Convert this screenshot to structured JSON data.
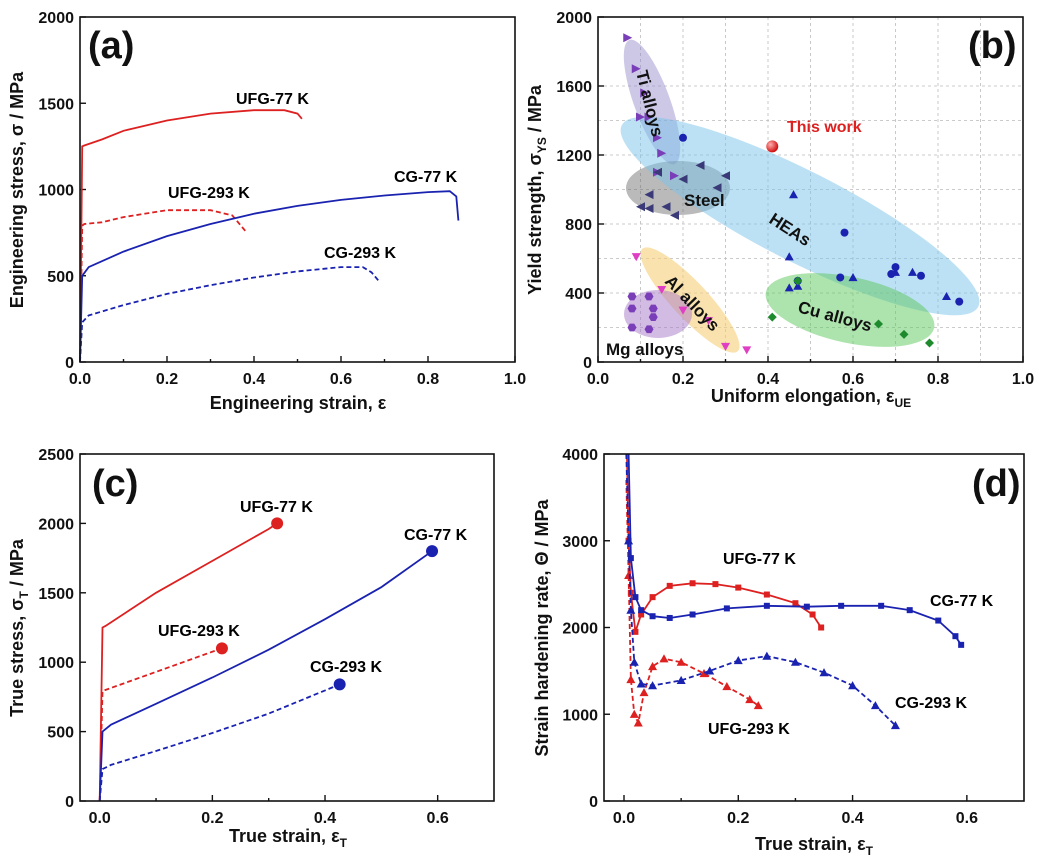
{
  "colors": {
    "red": "#dd2020",
    "blue": "#1a22b0",
    "purple": "#7a3fb8",
    "green": "#1e8a2e",
    "magenta": "#e03fc4",
    "steel": "#3a3a78"
  },
  "chart_data": [
    {
      "type": "line",
      "panel": "(a)",
      "xlabel": "Engineering strain, ε",
      "ylabel": "Engineering stress, σ / MPa",
      "xlim": [
        0,
        1.0
      ],
      "ylim": [
        0,
        2000
      ],
      "xticks": [
        "0.0",
        "0.2",
        "0.4",
        "0.6",
        "0.8",
        "1.0"
      ],
      "yticks": [
        "0",
        "500",
        "1000",
        "1500",
        "2000"
      ],
      "series": [
        {
          "name": "UFG-77 K",
          "color": "red",
          "dashed": false,
          "x": [
            0,
            0.005,
            0.01,
            0.05,
            0.1,
            0.2,
            0.3,
            0.4,
            0.47,
            0.5,
            0.51
          ],
          "y": [
            0,
            1250,
            1255,
            1290,
            1340,
            1400,
            1440,
            1460,
            1460,
            1440,
            1410
          ]
        },
        {
          "name": "UFG-293 K",
          "color": "red",
          "dashed": true,
          "x": [
            0,
            0.005,
            0.01,
            0.05,
            0.1,
            0.2,
            0.3,
            0.35,
            0.38
          ],
          "y": [
            0,
            790,
            800,
            810,
            840,
            880,
            880,
            850,
            760
          ]
        },
        {
          "name": "CG-77 K",
          "color": "blue",
          "dashed": false,
          "x": [
            0,
            0.005,
            0.02,
            0.1,
            0.2,
            0.3,
            0.4,
            0.5,
            0.6,
            0.7,
            0.8,
            0.85,
            0.865,
            0.87
          ],
          "y": [
            0,
            500,
            550,
            640,
            730,
            800,
            860,
            905,
            940,
            965,
            985,
            990,
            960,
            820
          ]
        },
        {
          "name": "CG-293 K",
          "color": "blue",
          "dashed": true,
          "x": [
            0,
            0.005,
            0.02,
            0.1,
            0.2,
            0.3,
            0.4,
            0.5,
            0.6,
            0.65,
            0.67,
            0.69
          ],
          "y": [
            0,
            230,
            270,
            330,
            395,
            445,
            490,
            525,
            550,
            550,
            520,
            460
          ]
        }
      ],
      "annotations": [
        "UFG-77 K",
        "UFG-293 K",
        "CG-77 K",
        "CG-293 K"
      ]
    },
    {
      "type": "scatter",
      "panel": "(b)",
      "xlabel": "Uniform elongation, ε",
      "xlabel_sub": "UE",
      "ylabel": "Yield strength, σ",
      "ylabel_sub": "YS",
      "ylabel_unit": " / MPa",
      "xlim": [
        0,
        1.0
      ],
      "ylim": [
        0,
        2000
      ],
      "xticks": [
        "0.0",
        "0.2",
        "0.4",
        "0.6",
        "0.8",
        "1.0"
      ],
      "yticks": [
        "0",
        "400",
        "800",
        "1200",
        "1600",
        "2000"
      ],
      "regions": [
        "Ti alloys",
        "Steel",
        "HEAs",
        "Al alloys",
        "Cu alloys",
        "Mg alloys"
      ],
      "this_work_label": "This work",
      "series": [
        {
          "name": "Ti alloys",
          "marker": "tri-right",
          "color": "purple",
          "points": [
            [
              0.07,
              1880
            ],
            [
              0.09,
              1700
            ],
            [
              0.11,
              1560
            ],
            [
              0.12,
              1420
            ],
            [
              0.1,
              1420
            ],
            [
              0.14,
              1300
            ],
            [
              0.15,
              1210
            ],
            [
              0.14,
              1100
            ],
            [
              0.18,
              1080
            ]
          ]
        },
        {
          "name": "Steel",
          "marker": "tri-left",
          "color": "steel",
          "points": [
            [
              0.12,
              970
            ],
            [
              0.1,
              900
            ],
            [
              0.12,
              890
            ],
            [
              0.16,
              900
            ],
            [
              0.2,
              1060
            ],
            [
              0.24,
              1140
            ],
            [
              0.3,
              1080
            ],
            [
              0.28,
              1010
            ],
            [
              0.18,
              850
            ],
            [
              0.14,
              1100
            ]
          ]
        },
        {
          "name": "HEAs",
          "marker": "circle-tri",
          "color": "blue",
          "points": [
            [
              0.2,
              1300
            ],
            [
              0.46,
              970
            ],
            [
              0.58,
              750
            ],
            [
              0.45,
              610
            ],
            [
              0.47,
              470
            ],
            [
              0.47,
              440
            ],
            [
              0.57,
              490
            ],
            [
              0.6,
              490
            ],
            [
              0.7,
              550
            ],
            [
              0.7,
              520
            ],
            [
              0.69,
              510
            ],
            [
              0.74,
              520
            ],
            [
              0.76,
              500
            ],
            [
              0.82,
              380
            ],
            [
              0.85,
              350
            ],
            [
              0.45,
              430
            ]
          ]
        },
        {
          "name": "Al alloys",
          "marker": "tri-down",
          "color": "magenta",
          "points": [
            [
              0.09,
              610
            ],
            [
              0.15,
              420
            ],
            [
              0.2,
              300
            ],
            [
              0.26,
              240
            ],
            [
              0.3,
              90
            ],
            [
              0.35,
              70
            ]
          ]
        },
        {
          "name": "Cu alloys",
          "marker": "diamond",
          "color": "green",
          "points": [
            [
              0.41,
              260
            ],
            [
              0.47,
              470
            ],
            [
              0.66,
              220
            ],
            [
              0.72,
              160
            ],
            [
              0.78,
              110
            ]
          ]
        },
        {
          "name": "Mg alloys",
          "marker": "hexagon",
          "color": "purple",
          "points": [
            [
              0.08,
              380
            ],
            [
              0.08,
              310
            ],
            [
              0.12,
              380
            ],
            [
              0.13,
              310
            ],
            [
              0.13,
              260
            ],
            [
              0.08,
              200
            ],
            [
              0.12,
              190
            ]
          ]
        },
        {
          "name": "This work",
          "marker": "sphere",
          "color": "red",
          "points": [
            [
              0.41,
              1250
            ]
          ]
        }
      ]
    },
    {
      "type": "line",
      "panel": "(c)",
      "xlabel": "True strain, ε",
      "xlabel_sub": "T",
      "ylabel": "True stress, σ",
      "ylabel_sub": "T",
      "ylabel_unit": " / MPa",
      "xlim": [
        -0.035,
        0.7
      ],
      "ylim": [
        0,
        2500
      ],
      "xticks": [
        "0.0",
        "0.2",
        "0.4",
        "0.6"
      ],
      "xtick_values": [
        0,
        0.2,
        0.4,
        0.6
      ],
      "yticks": [
        "0",
        "500",
        "1000",
        "1500",
        "2000",
        "2500"
      ],
      "series": [
        {
          "name": "UFG-77 K",
          "color": "red",
          "dashed": false,
          "x": [
            0,
            0.005,
            0.01,
            0.1,
            0.2,
            0.3,
            0.315
          ],
          "y": [
            0,
            1250,
            1260,
            1500,
            1730,
            1960,
            2000
          ],
          "endpoint": [
            0.315,
            2000
          ]
        },
        {
          "name": "UFG-293 K",
          "color": "red",
          "dashed": true,
          "x": [
            0,
            0.005,
            0.01,
            0.1,
            0.217
          ],
          "y": [
            0,
            790,
            800,
            930,
            1100
          ],
          "endpoint": [
            0.217,
            1100
          ]
        },
        {
          "name": "CG-77 K",
          "color": "blue",
          "dashed": false,
          "x": [
            0,
            0.005,
            0.02,
            0.1,
            0.2,
            0.3,
            0.4,
            0.5,
            0.59
          ],
          "y": [
            0,
            500,
            550,
            700,
            890,
            1090,
            1310,
            1540,
            1800
          ],
          "endpoint": [
            0.59,
            1800
          ]
        },
        {
          "name": "CG-293 K",
          "color": "blue",
          "dashed": true,
          "x": [
            0,
            0.005,
            0.02,
            0.1,
            0.2,
            0.3,
            0.426
          ],
          "y": [
            0,
            230,
            260,
            360,
            490,
            630,
            840
          ],
          "endpoint": [
            0.426,
            840
          ]
        }
      ],
      "annotations": [
        "UFG-77 K",
        "UFG-293 K",
        "CG-77 K",
        "CG-293 K"
      ]
    },
    {
      "type": "line",
      "panel": "(d)",
      "xlabel": "True strain, ε",
      "xlabel_sub": "T",
      "ylabel": "Strain hardening rate, Θ / MPa",
      "xlim": [
        -0.035,
        0.7
      ],
      "ylim": [
        0,
        4000
      ],
      "xticks": [
        "0.0",
        "0.2",
        "0.4",
        "0.6"
      ],
      "xtick_values": [
        0,
        0.2,
        0.4,
        0.6
      ],
      "yticks": [
        "0",
        "1000",
        "2000",
        "3000",
        "4000"
      ],
      "series": [
        {
          "name": "UFG-77 K",
          "color": "red",
          "dashed": false,
          "marker": "square",
          "x": [
            0.005,
            0.008,
            0.012,
            0.02,
            0.03,
            0.05,
            0.08,
            0.12,
            0.16,
            0.2,
            0.25,
            0.3,
            0.33,
            0.345
          ],
          "y": [
            4000,
            3000,
            2400,
            1950,
            2150,
            2350,
            2480,
            2510,
            2500,
            2460,
            2380,
            2280,
            2150,
            2000
          ]
        },
        {
          "name": "UFG-293 K",
          "color": "red",
          "dashed": true,
          "marker": "triangle",
          "x": [
            0.004,
            0.008,
            0.012,
            0.018,
            0.025,
            0.035,
            0.05,
            0.07,
            0.1,
            0.14,
            0.18,
            0.22,
            0.235
          ],
          "y": [
            3700,
            2600,
            1400,
            1000,
            900,
            1250,
            1550,
            1640,
            1600,
            1470,
            1320,
            1170,
            1100
          ]
        },
        {
          "name": "CG-77 K",
          "color": "blue",
          "dashed": false,
          "marker": "square",
          "x": [
            0.008,
            0.012,
            0.02,
            0.03,
            0.05,
            0.08,
            0.12,
            0.18,
            0.25,
            0.32,
            0.38,
            0.45,
            0.5,
            0.55,
            0.58,
            0.59
          ],
          "y": [
            4000,
            2800,
            2350,
            2200,
            2130,
            2110,
            2150,
            2220,
            2250,
            2240,
            2250,
            2250,
            2200,
            2080,
            1900,
            1800
          ]
        },
        {
          "name": "CG-293 K",
          "color": "blue",
          "dashed": true,
          "marker": "triangle",
          "x": [
            0.004,
            0.008,
            0.012,
            0.018,
            0.03,
            0.05,
            0.1,
            0.15,
            0.2,
            0.25,
            0.3,
            0.35,
            0.4,
            0.44,
            0.475
          ],
          "y": [
            4000,
            3000,
            2200,
            1600,
            1350,
            1330,
            1390,
            1500,
            1620,
            1670,
            1600,
            1480,
            1330,
            1100,
            870
          ]
        }
      ],
      "annotations": [
        "UFG-77 K",
        "UFG-293 K",
        "CG-77 K",
        "CG-293 K"
      ]
    }
  ]
}
